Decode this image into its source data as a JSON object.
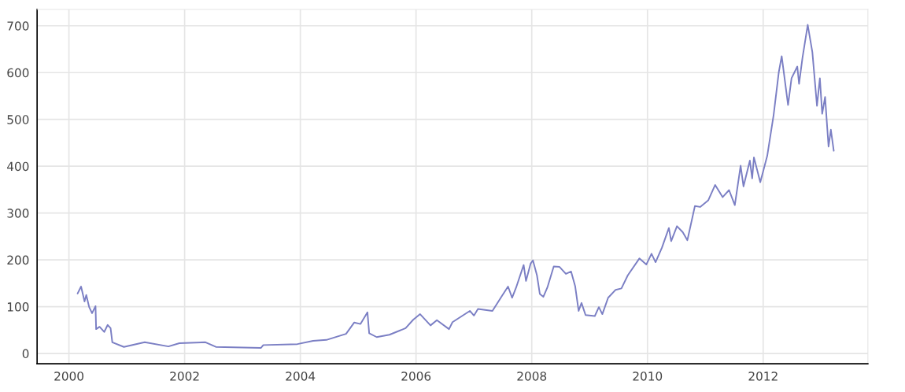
{
  "chart_data": {
    "type": "line",
    "x": [
      2000.15,
      2000.21,
      2000.27,
      2000.3,
      2000.35,
      2000.4,
      2000.46,
      2000.47,
      2000.53,
      2000.61,
      2000.67,
      2000.72,
      2000.75,
      2000.95,
      2001.31,
      2001.72,
      2001.91,
      2002.36,
      2002.54,
      2003.32,
      2003.36,
      2003.95,
      2004.22,
      2004.45,
      2004.79,
      2004.93,
      2005.04,
      2005.16,
      2005.19,
      2005.32,
      2005.54,
      2005.82,
      2005.95,
      2006.07,
      2006.25,
      2006.36,
      2006.57,
      2006.63,
      2006.93,
      2007.0,
      2007.07,
      2007.32,
      2007.48,
      2007.59,
      2007.66,
      2007.73,
      2007.86,
      2007.9,
      2007.98,
      2008.02,
      2008.09,
      2008.14,
      2008.2,
      2008.27,
      2008.38,
      2008.48,
      2008.59,
      2008.68,
      2008.75,
      2008.81,
      2008.86,
      2008.93,
      2009.09,
      2009.16,
      2009.22,
      2009.32,
      2009.45,
      2009.55,
      2009.66,
      2009.86,
      2009.98,
      2010.07,
      2010.14,
      2010.25,
      2010.37,
      2010.41,
      2010.51,
      2010.61,
      2010.69,
      2010.82,
      2010.91,
      2011.05,
      2011.17,
      2011.3,
      2011.41,
      2011.51,
      2011.61,
      2011.66,
      2011.77,
      2011.81,
      2011.84,
      2011.95,
      2012.07,
      2012.18,
      2012.27,
      2012.32,
      2012.43,
      2012.49,
      2012.59,
      2012.62,
      2012.68,
      2012.77,
      2012.85,
      2012.93,
      2012.98,
      2013.02,
      2013.07,
      2013.13,
      2013.17,
      2013.22
    ],
    "series": [
      {
        "color": "#7b7fc4",
        "values": [
          128,
          143,
          111,
          125,
          99,
          86,
          101,
          52,
          57,
          46,
          61,
          54,
          24,
          14,
          24,
          15,
          22,
          24,
          14,
          12,
          18,
          20,
          27,
          29,
          42,
          66,
          63,
          88,
          43,
          35,
          40,
          54,
          72,
          84,
          60,
          71,
          52,
          67,
          91,
          81,
          95,
          91,
          122,
          143,
          119,
          141,
          189,
          155,
          192,
          199,
          167,
          127,
          121,
          141,
          186,
          185,
          170,
          175,
          144,
          91,
          108,
          82,
          80,
          99,
          84,
          119,
          136,
          139,
          167,
          203,
          190,
          213,
          195,
          226,
          268,
          240,
          272,
          259,
          242,
          315,
          313,
          327,
          360,
          334,
          349,
          317,
          401,
          357,
          412,
          374,
          419,
          366,
          422,
          509,
          601,
          635,
          531,
          588,
          613,
          576,
          632,
          702,
          644,
          529,
          588,
          512,
          548,
          442,
          478,
          433
        ]
      }
    ],
    "xlim": [
      1999.45,
      2013.81
    ],
    "xticks": [
      2000,
      2002,
      2004,
      2006,
      2008,
      2010,
      2012
    ],
    "ylim": [
      -22,
      735
    ],
    "yticks": [
      0,
      100,
      200,
      300,
      400,
      500,
      600,
      700
    ],
    "grid": true
  }
}
